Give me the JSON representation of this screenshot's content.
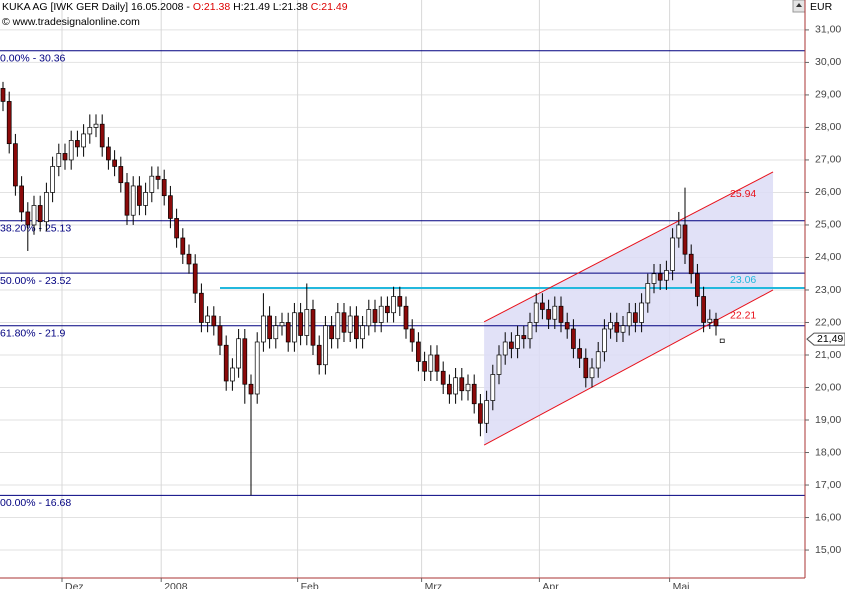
{
  "chart_data": {
    "type": "candlestick",
    "title_parts": [
      "KUKA AG [IWK GER  Daily] 16.05.2008 - ",
      "O:21.38",
      " H:21.49 L:21.38 ",
      "C:21.49"
    ],
    "subtitle": "© www.tradesignalonline.com",
    "currency": "EUR",
    "categories": [
      null,
      null,
      null,
      null,
      null,
      null,
      null,
      null,
      null,
      null,
      "Dez",
      null,
      null,
      null,
      null,
      null,
      null,
      null,
      null,
      null,
      null,
      null,
      null,
      null,
      null,
      null,
      "2008",
      null,
      null,
      null,
      null,
      null,
      null,
      null,
      null,
      null,
      null,
      null,
      null,
      null,
      null,
      null,
      null,
      null,
      null,
      null,
      null,
      null,
      "Feb",
      null,
      null,
      null,
      null,
      null,
      null,
      null,
      null,
      null,
      null,
      null,
      null,
      null,
      null,
      null,
      null,
      null,
      null,
      null,
      "Mrz",
      null,
      null,
      null,
      null,
      null,
      null,
      null,
      null,
      null,
      null,
      null,
      null,
      null,
      null,
      null,
      null,
      null,
      null,
      "Apr",
      null,
      null,
      null,
      null,
      null,
      null,
      null,
      null,
      null,
      null,
      null,
      null,
      null,
      null,
      null,
      null,
      null,
      null,
      null,
      null,
      "Mai",
      null,
      null,
      null,
      null,
      null,
      null,
      null,
      null
    ],
    "open": [
      29.2,
      28.8,
      27.5,
      26.2,
      25.4,
      25.0,
      25.6,
      25.1,
      26.0,
      26.8,
      27.2,
      27.0,
      27.6,
      27.4,
      27.8,
      28.0,
      28.1,
      27.4,
      27.0,
      26.8,
      26.3,
      25.3,
      26.2,
      25.6,
      26.0,
      26.5,
      26.4,
      25.9,
      25.2,
      24.6,
      24.1,
      23.8,
      22.9,
      22.0,
      22.2,
      21.9,
      21.3,
      20.2,
      20.6,
      21.5,
      20.1,
      19.8,
      21.4,
      22.2,
      21.5,
      21.9,
      22.0,
      21.4,
      22.3,
      21.6,
      22.4,
      21.3,
      20.7,
      21.9,
      21.5,
      22.3,
      21.7,
      22.2,
      21.5,
      21.9,
      22.4,
      22.0,
      22.5,
      22.3,
      22.8,
      22.5,
      21.8,
      21.4,
      20.8,
      20.5,
      21.0,
      20.5,
      20.1,
      19.8,
      20.3,
      19.9,
      20.1,
      19.5,
      18.9,
      19.6,
      20.4,
      21.0,
      21.4,
      21.2,
      21.6,
      21.5,
      22.0,
      22.6,
      22.4,
      22.1,
      22.5,
      22.0,
      21.8,
      21.2,
      20.9,
      20.3,
      20.6,
      21.1,
      21.8,
      22.0,
      21.7,
      21.9,
      22.3,
      22.0,
      22.6,
      23.2,
      23.5,
      23.3,
      23.6,
      24.6,
      25.0,
      24.1,
      23.5,
      22.8,
      22.0,
      22.1,
      21.38
    ],
    "high": [
      29.4,
      29.1,
      27.8,
      26.5,
      25.7,
      25.9,
      25.9,
      26.3,
      27.1,
      27.5,
      27.5,
      27.9,
      27.9,
      28.1,
      28.4,
      28.4,
      28.4,
      27.7,
      27.3,
      27.1,
      26.6,
      26.5,
      26.5,
      26.3,
      26.8,
      26.8,
      26.7,
      26.2,
      25.5,
      24.9,
      24.4,
      24.1,
      23.2,
      22.5,
      22.5,
      22.2,
      21.6,
      20.9,
      21.8,
      21.8,
      20.4,
      21.7,
      22.9,
      22.5,
      22.2,
      22.3,
      22.3,
      22.6,
      22.6,
      23.2,
      22.7,
      21.6,
      22.2,
      22.2,
      22.6,
      22.6,
      22.5,
      22.5,
      22.2,
      22.7,
      22.7,
      22.8,
      22.8,
      23.1,
      23.1,
      22.8,
      22.1,
      21.7,
      21.1,
      21.3,
      21.3,
      20.8,
      20.4,
      20.6,
      20.6,
      20.4,
      20.4,
      19.8,
      19.9,
      20.7,
      21.3,
      21.7,
      21.7,
      21.9,
      21.9,
      22.3,
      22.9,
      22.9,
      22.7,
      22.8,
      22.8,
      22.3,
      22.1,
      21.5,
      21.2,
      20.9,
      21.4,
      22.1,
      22.3,
      22.3,
      22.2,
      22.6,
      22.6,
      22.9,
      23.5,
      23.8,
      23.8,
      23.9,
      24.9,
      25.4,
      26.15,
      24.4,
      23.8,
      23.1,
      22.4,
      22.3,
      21.49
    ],
    "low": [
      28.5,
      27.2,
      25.9,
      25.1,
      24.2,
      24.7,
      24.8,
      24.8,
      25.7,
      26.5,
      26.7,
      26.7,
      27.1,
      27.1,
      27.5,
      27.7,
      27.1,
      26.7,
      26.5,
      26.0,
      25.0,
      25.0,
      25.3,
      25.3,
      25.7,
      26.1,
      25.6,
      24.9,
      24.3,
      23.8,
      23.5,
      22.6,
      21.7,
      21.7,
      21.6,
      21.0,
      19.9,
      19.9,
      20.3,
      19.5,
      16.68,
      19.5,
      21.1,
      21.2,
      21.2,
      21.6,
      21.1,
      21.1,
      21.3,
      21.3,
      21.0,
      20.4,
      20.4,
      21.2,
      21.2,
      21.4,
      21.4,
      21.2,
      21.2,
      21.6,
      21.7,
      21.7,
      22.0,
      22.0,
      22.2,
      21.5,
      21.1,
      20.5,
      20.2,
      20.2,
      20.2,
      19.8,
      19.5,
      19.5,
      19.6,
      19.6,
      19.2,
      18.5,
      18.6,
      19.3,
      20.1,
      20.7,
      20.9,
      20.9,
      21.2,
      21.2,
      21.7,
      22.1,
      21.8,
      21.8,
      21.7,
      21.5,
      20.9,
      20.6,
      20.0,
      20.0,
      20.3,
      20.8,
      21.5,
      21.4,
      21.4,
      21.6,
      21.7,
      21.7,
      22.3,
      22.9,
      23.0,
      23.0,
      23.3,
      24.3,
      23.8,
      23.2,
      22.5,
      21.7,
      21.8,
      21.6,
      21.38
    ],
    "close": [
      28.8,
      27.5,
      26.2,
      25.4,
      25.0,
      25.6,
      25.1,
      26.0,
      26.8,
      27.2,
      27.0,
      27.6,
      27.4,
      27.8,
      28.0,
      28.1,
      27.4,
      27.0,
      26.8,
      26.3,
      25.3,
      26.2,
      25.6,
      26.0,
      26.5,
      26.4,
      25.9,
      25.2,
      24.6,
      24.1,
      23.8,
      22.9,
      22.0,
      22.2,
      21.9,
      21.3,
      20.2,
      20.6,
      21.5,
      20.1,
      19.8,
      21.4,
      22.2,
      21.5,
      21.9,
      22.0,
      21.4,
      22.3,
      21.6,
      22.4,
      21.3,
      20.7,
      21.9,
      21.5,
      22.3,
      21.7,
      22.2,
      21.5,
      21.9,
      22.4,
      22.0,
      22.5,
      22.3,
      22.8,
      22.5,
      21.8,
      21.4,
      20.8,
      20.5,
      21.0,
      20.5,
      20.1,
      19.8,
      20.3,
      19.9,
      20.1,
      19.5,
      18.9,
      19.6,
      20.4,
      21.0,
      21.4,
      21.2,
      21.6,
      21.5,
      22.0,
      22.6,
      22.4,
      22.1,
      22.5,
      22.0,
      21.8,
      21.2,
      20.9,
      20.3,
      20.6,
      21.1,
      21.8,
      22.0,
      21.7,
      21.9,
      22.3,
      22.0,
      22.6,
      23.2,
      23.5,
      23.3,
      23.6,
      24.6,
      25.0,
      24.1,
      23.5,
      22.8,
      22.0,
      22.1,
      21.9,
      21.49
    ],
    "up_color": "#ffffff",
    "down_color": "#8b0a0a",
    "ylim": [
      14.14,
      31.92
    ],
    "yticks": [
      {
        "value": 15,
        "label": "15,00"
      },
      {
        "value": 16,
        "label": "16,00"
      },
      {
        "value": 17,
        "label": "17,00"
      },
      {
        "value": 18,
        "label": "18,00"
      },
      {
        "value": 19,
        "label": "19,00"
      },
      {
        "value": 20,
        "label": "20,00"
      },
      {
        "value": 21,
        "label": "21,00"
      },
      {
        "value": 22,
        "label": "22,00"
      },
      {
        "value": 23,
        "label": "23,00"
      },
      {
        "value": 24,
        "label": "24,00"
      },
      {
        "value": 25,
        "label": "25,00"
      },
      {
        "value": 26,
        "label": "26,00"
      },
      {
        "value": 27,
        "label": "27,00"
      },
      {
        "value": 28,
        "label": "28,00"
      },
      {
        "value": 29,
        "label": "29,00"
      },
      {
        "value": 30,
        "label": "30,00"
      },
      {
        "value": 31,
        "label": "31,00"
      }
    ],
    "last_price": {
      "value": 21.49,
      "label": "21,49"
    },
    "levels": [
      {
        "value": 30.36,
        "label": "0.00% - 30.36"
      },
      {
        "value": 25.13,
        "label": "38.20% - 25.13"
      },
      {
        "value": 23.52,
        "label": "50.00% - 23.52"
      },
      {
        "value": 21.9,
        "label": "61.80% - 21.9"
      },
      {
        "value": 16.68,
        "label": "00.00% - 16.68"
      }
    ],
    "level_color": "#000080",
    "support": {
      "value": 23.06,
      "start": 35,
      "color": "#22b8dd"
    },
    "channel": {
      "x": [
        77.6,
        124.2
      ],
      "upper": [
        22.02,
        26.63
      ],
      "lower": [
        18.23,
        23.0
      ],
      "color": "#e8101a",
      "fill": "#dcdcf6",
      "labels": [
        25.94,
        22.21
      ]
    }
  }
}
